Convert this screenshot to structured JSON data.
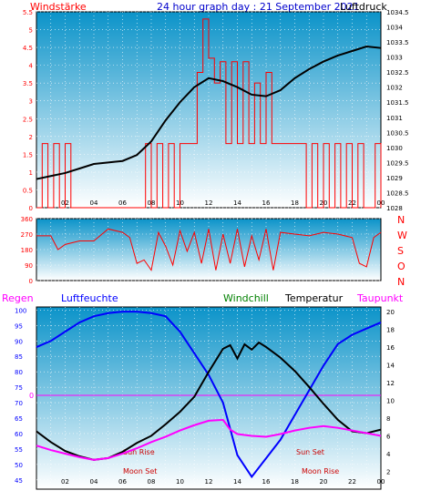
{
  "header": {
    "left": "Windstärke",
    "title": "24 hour graph day : 21 September 2021",
    "right": "Luftdruck"
  },
  "colors": {
    "wind": "#ff0000",
    "pressure": "#000000",
    "humidity": "#0000ff",
    "windchill": "#008000",
    "temperature": "#000000",
    "dewpoint": "#ff00ff",
    "rain": "#ff00ff",
    "gradient_top": "#0b93c9",
    "gradient_bottom": "#ffffff"
  },
  "time_ticks": [
    "02",
    "04",
    "06",
    "08",
    "10",
    "12",
    "14",
    "16",
    "18",
    "20",
    "22",
    "00"
  ],
  "chart_data": [
    {
      "type": "line",
      "name": "wind-pressure",
      "left_axis": {
        "label": "Windstärke",
        "ticks": [
          "0",
          "0.5",
          "1",
          "1.5",
          "2",
          "2.5",
          "3",
          "3.5",
          "4",
          "4.5",
          "5",
          "5.5"
        ],
        "ylim": [
          0,
          5.5
        ]
      },
      "right_axis": {
        "label": "Luftdruck",
        "ticks": [
          "1028",
          "1028.5",
          "1029",
          "1029.5",
          "1030",
          "1030.5",
          "1031",
          "1031.5",
          "1032",
          "1032.5",
          "1033",
          "1033.5",
          "1034",
          "1034.5"
        ],
        "ylim": [
          1028,
          1034.5
        ]
      },
      "pressure": {
        "x": [
          0,
          1,
          2,
          3,
          4,
          5,
          6,
          7,
          8,
          9,
          10,
          11,
          12,
          13,
          14,
          15,
          16,
          17,
          18,
          19,
          20,
          21,
          22,
          23,
          24
        ],
        "y": [
          1028.95,
          1029.05,
          1029.15,
          1029.3,
          1029.45,
          1029.5,
          1029.55,
          1029.75,
          1030.2,
          1030.9,
          1031.5,
          1032.0,
          1032.3,
          1032.2,
          1032.0,
          1031.75,
          1031.7,
          1031.9,
          1032.3,
          1032.6,
          1032.85,
          1033.05,
          1033.2,
          1033.35,
          1033.3
        ]
      },
      "wind": {
        "x": [
          0,
          0.4,
          0.8,
          1.2,
          1.6,
          2,
          2.4,
          7.2,
          7.6,
          8,
          8.4,
          8.8,
          9.2,
          9.6,
          10,
          10.4,
          10.8,
          11.2,
          11.6,
          12,
          12.4,
          12.8,
          13.2,
          13.6,
          14,
          14.4,
          14.8,
          15.2,
          15.6,
          16,
          16.4,
          16.8,
          17.2,
          17.6,
          18,
          18.4,
          18.8,
          19.2,
          19.6,
          20,
          20.4,
          20.8,
          21.2,
          21.6,
          22,
          22.4,
          22.8,
          23.2,
          23.6,
          24
        ],
        "y": [
          0,
          1.8,
          0,
          1.8,
          0,
          1.8,
          0,
          0,
          1.8,
          0,
          1.8,
          0,
          1.8,
          0,
          1.8,
          1.8,
          1.8,
          3.8,
          5.3,
          4.2,
          3.5,
          4.1,
          1.8,
          4.1,
          1.8,
          4.1,
          1.8,
          3.5,
          1.8,
          3.8,
          1.8,
          1.8,
          1.8,
          1.8,
          1.8,
          1.8,
          0,
          1.8,
          0,
          1.8,
          0,
          1.8,
          0,
          1.8,
          0,
          1.8,
          0,
          0,
          1.8,
          0
        ]
      }
    },
    {
      "type": "line",
      "name": "wind-direction",
      "left_axis": {
        "ticks": [
          "0",
          "90",
          "180",
          "270",
          "360"
        ],
        "ylim": [
          0,
          360
        ]
      },
      "right_axis": {
        "ticks": [
          "N",
          "W",
          "S",
          "O",
          "N"
        ]
      },
      "direction": {
        "x": [
          0,
          1,
          1.5,
          2,
          3,
          4,
          5,
          6,
          6.5,
          7,
          7.5,
          8,
          8.5,
          9,
          9.5,
          10,
          10.5,
          11,
          11.5,
          12,
          12.5,
          13,
          13.5,
          14,
          14.5,
          15,
          15.5,
          16,
          16.5,
          17,
          18,
          19,
          20,
          21,
          22,
          22.5,
          23,
          23.5,
          24
        ],
        "y": [
          260,
          260,
          180,
          210,
          230,
          230,
          300,
          280,
          250,
          100,
          120,
          60,
          280,
          200,
          90,
          290,
          170,
          280,
          100,
          300,
          60,
          270,
          100,
          300,
          80,
          260,
          120,
          300,
          60,
          280,
          270,
          260,
          280,
          270,
          250,
          100,
          80,
          250,
          280
        ]
      }
    },
    {
      "type": "line",
      "name": "humidity-temperature",
      "legend": [
        "Regen",
        "Luftfeuchte",
        "Windchill",
        "Temperatur",
        "Taupunkt"
      ],
      "left_axis": {
        "ticks": [
          "45",
          "50",
          "55",
          "60",
          "65",
          "70",
          "75",
          "80",
          "85",
          "90",
          "95",
          "100"
        ],
        "ylim": [
          42,
          101
        ],
        "rain_label": "0"
      },
      "right_axis": {
        "ticks": [
          "2",
          "4",
          "6",
          "8",
          "10",
          "12",
          "14",
          "16",
          "18",
          "20"
        ],
        "ylim": [
          0,
          20.5
        ]
      },
      "humidity": {
        "x": [
          0,
          1,
          2,
          3,
          4,
          5,
          6,
          7,
          8,
          9,
          10,
          11,
          12,
          13,
          14,
          15,
          16,
          17,
          18,
          19,
          20,
          21,
          22,
          23,
          24
        ],
        "y": [
          88,
          90,
          93,
          96,
          98,
          99,
          99.5,
          99.5,
          99,
          98,
          93,
          86,
          79,
          70,
          53,
          46,
          52,
          58,
          66,
          74,
          82,
          89,
          92,
          94,
          96
        ]
      },
      "temperature": {
        "x": [
          0,
          1,
          2,
          3,
          4,
          5,
          6,
          7,
          8,
          9,
          10,
          11,
          12,
          13,
          13.5,
          14,
          14.5,
          15,
          15.5,
          16,
          17,
          18,
          19,
          20,
          21,
          22,
          23,
          24
        ],
        "y": [
          6.5,
          5.3,
          4.3,
          3.7,
          3.3,
          3.5,
          4.2,
          5.2,
          6.0,
          7.3,
          8.7,
          10.4,
          13.2,
          15.8,
          16.2,
          14.7,
          16.3,
          15.7,
          16.5,
          16.0,
          14.8,
          13.3,
          11.5,
          9.6,
          7.8,
          6.5,
          6.3,
          6.7
        ]
      },
      "dewpoint": {
        "x": [
          0,
          1,
          2,
          3,
          4,
          5,
          6,
          7,
          8,
          9,
          10,
          11,
          12,
          13,
          13.5,
          14,
          15,
          16,
          17,
          18,
          19,
          20,
          21,
          22,
          23,
          24
        ],
        "y": [
          4.9,
          4.4,
          4.0,
          3.6,
          3.3,
          3.5,
          4.0,
          4.6,
          5.3,
          5.9,
          6.6,
          7.2,
          7.7,
          7.8,
          6.7,
          6.2,
          6.0,
          5.9,
          6.2,
          6.6,
          6.9,
          7.1,
          6.9,
          6.6,
          6.3,
          6.0
        ]
      },
      "annotations": [
        "Sun Rise",
        "Moon Set",
        "Sun Set",
        "Moon Rise"
      ]
    }
  ]
}
